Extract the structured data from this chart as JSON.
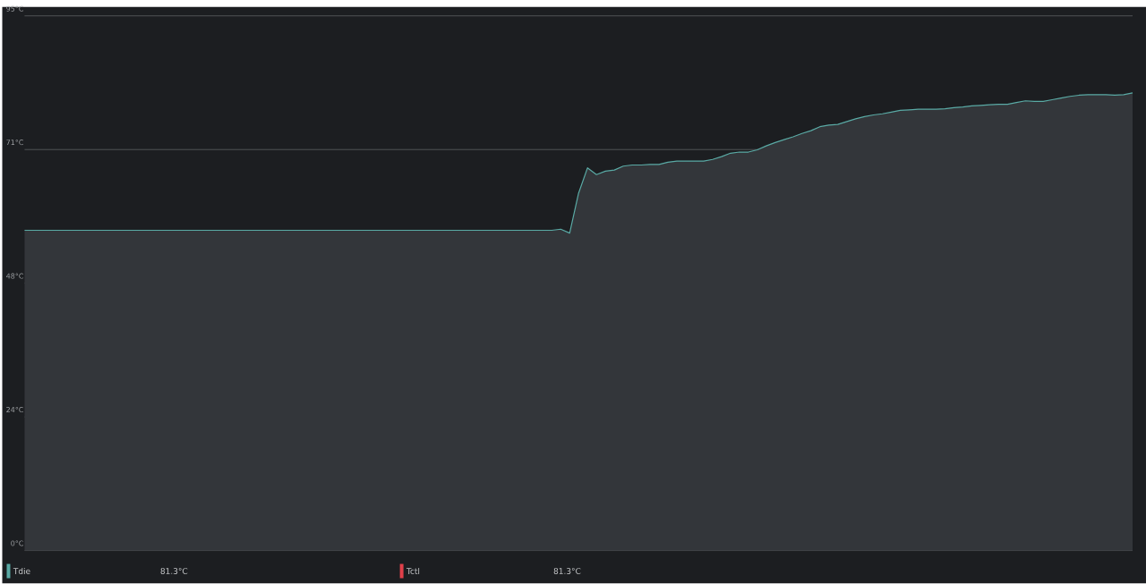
{
  "chart_data": {
    "type": "area",
    "categories": [
      null,
      null,
      null,
      null,
      null,
      null,
      null,
      null,
      null,
      null,
      null,
      null,
      null,
      null,
      null,
      null,
      null,
      null,
      null,
      null,
      null,
      null,
      null,
      null,
      null,
      null,
      null,
      null,
      null,
      null,
      null,
      null,
      null,
      null,
      null,
      null,
      null,
      null,
      null,
      null,
      null,
      null,
      null,
      null,
      null,
      null,
      null,
      null,
      null,
      null,
      null,
      null,
      null,
      null,
      null,
      null,
      null,
      null,
      null,
      null,
      null,
      null,
      null,
      null,
      null,
      null,
      null,
      null,
      null,
      null,
      null,
      null,
      null,
      null,
      null,
      null,
      null,
      null,
      null,
      null,
      null,
      null,
      null,
      null,
      null,
      null,
      null,
      null,
      null,
      null,
      null,
      null,
      null,
      null,
      null,
      null,
      null,
      null,
      null,
      null,
      null,
      null,
      null,
      null,
      null,
      null,
      null,
      null,
      null,
      null,
      null,
      null,
      null,
      null,
      null,
      null,
      null,
      null,
      null,
      null,
      null,
      null,
      null,
      null,
      null
    ],
    "series": [
      {
        "name": "Tdie",
        "color": "#5aaaa5",
        "values": [
          56.9,
          56.9,
          56.9,
          56.9,
          56.9,
          56.9,
          56.9,
          56.9,
          56.9,
          56.9,
          56.9,
          56.9,
          56.9,
          56.9,
          56.9,
          56.9,
          56.9,
          56.9,
          56.9,
          56.9,
          56.9,
          56.9,
          56.9,
          56.9,
          56.9,
          56.9,
          56.9,
          56.9,
          56.9,
          56.9,
          56.9,
          56.9,
          56.9,
          56.9,
          56.9,
          56.9,
          56.9,
          56.9,
          56.9,
          56.9,
          56.9,
          56.9,
          56.9,
          56.9,
          56.9,
          56.9,
          56.9,
          56.9,
          56.9,
          56.9,
          56.9,
          56.9,
          56.9,
          56.9,
          56.9,
          56.9,
          56.9,
          56.9,
          56.9,
          56.9,
          57.1,
          56.4,
          63.5,
          68.0,
          66.8,
          67.4,
          67.6,
          68.3,
          68.5,
          68.5,
          68.6,
          68.6,
          69.0,
          69.2,
          69.2,
          69.2,
          69.2,
          69.5,
          70.0,
          70.6,
          70.8,
          70.8,
          71.2,
          71.9,
          72.5,
          73.0,
          73.5,
          74.1,
          74.6,
          75.3,
          75.6,
          75.7,
          76.2,
          76.7,
          77.1,
          77.4,
          77.6,
          77.9,
          78.2,
          78.3,
          78.4,
          78.4,
          78.4,
          78.5,
          78.7,
          78.8,
          79.0,
          79.1,
          79.2,
          79.3,
          79.3,
          79.6,
          79.9,
          79.8,
          79.8,
          80.1,
          80.4,
          80.7,
          80.9,
          81.0,
          81.0,
          81.0,
          80.9,
          81.0,
          81.3
        ]
      },
      {
        "name": "Tctl",
        "color": "#e0404a",
        "values": [
          null,
          null,
          null,
          null,
          null,
          null,
          null,
          null,
          null,
          null,
          null,
          null,
          null,
          null,
          null,
          null,
          null,
          null,
          null,
          null,
          null,
          null,
          null,
          null,
          null,
          null,
          null,
          null,
          null,
          null,
          null,
          null,
          null,
          null,
          null,
          null,
          null,
          null,
          null,
          null,
          null,
          null,
          null,
          null,
          null,
          null,
          null,
          null,
          null,
          null,
          null,
          null,
          null,
          null,
          null,
          null,
          null,
          null,
          null,
          null,
          null,
          null,
          null,
          null,
          null,
          null,
          null,
          null,
          null,
          null,
          null,
          null,
          null,
          null,
          null,
          null,
          null,
          null,
          null,
          null,
          null,
          null,
          null,
          null,
          null,
          null,
          null,
          null,
          null,
          null,
          null,
          null,
          null,
          null,
          null,
          null,
          null,
          null,
          null,
          null,
          null,
          null,
          null,
          null,
          null,
          null,
          null,
          null,
          null,
          null,
          null,
          null,
          null,
          null,
          null,
          null,
          null,
          null,
          null,
          null,
          null,
          null,
          null,
          null,
          null
        ]
      }
    ],
    "ylim": [
      0,
      95
    ],
    "yticks": [
      {
        "value": 0,
        "label": "0°C"
      },
      {
        "value": 23.75,
        "label": "24°C"
      },
      {
        "value": 47.5,
        "label": "48°C"
      },
      {
        "value": 71.25,
        "label": "71°C"
      },
      {
        "value": 95,
        "label": "95°C"
      }
    ],
    "grid": "y",
    "legend": "bottom",
    "annotations": [
      "81.3°C",
      "81.3°C"
    ]
  }
}
